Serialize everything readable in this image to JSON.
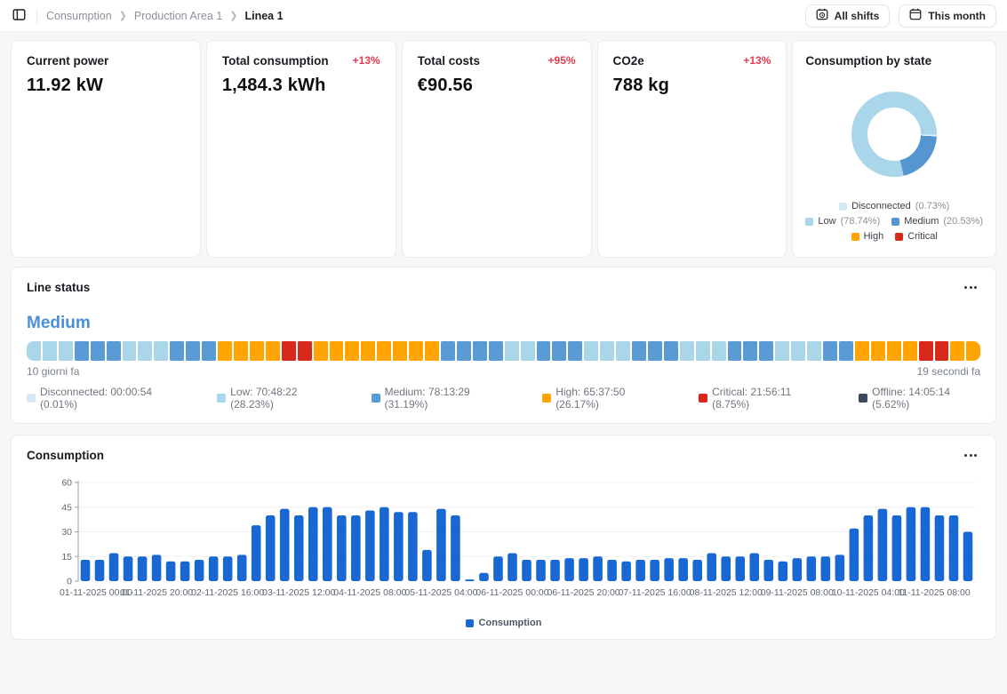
{
  "header": {
    "breadcrumb": [
      "Consumption",
      "Production Area 1",
      "Linea 1"
    ],
    "buttons": {
      "all_shifts": "All shifts",
      "this_month": "This month"
    }
  },
  "kpis": [
    {
      "title": "Current power",
      "value": "11.92 kW",
      "delta": ""
    },
    {
      "title": "Total consumption",
      "value": "1,484.3 kWh",
      "delta": "+13%"
    },
    {
      "title": "Total costs",
      "value": "€90.56",
      "delta": "+95%"
    },
    {
      "title": "CO2e",
      "value": "788 kg",
      "delta": "+13%"
    }
  ],
  "consumption_by_state": {
    "title": "Consumption by state",
    "donut": {
      "start_deg": 167,
      "slices": [
        {
          "label": "Low",
          "value": 78.74,
          "color": "#a9d6e9"
        },
        {
          "label": "Disconnected",
          "value": 0.73,
          "color": "#e6f2fa"
        },
        {
          "label": "Medium",
          "value": 20.53,
          "color": "#5596d0"
        },
        {
          "label": "High",
          "value": 0,
          "color": "#ffa400"
        },
        {
          "label": "Critical",
          "value": 0,
          "color": "#d9291c"
        }
      ]
    },
    "legend_rows": [
      [
        {
          "label": "Disconnected",
          "pct": "(0.73%)",
          "color": "#d5e9f5"
        }
      ],
      [
        {
          "label": "Low",
          "pct": "(78.74%)",
          "color": "#a9d6e9"
        },
        {
          "label": "Medium",
          "pct": "(20.53%)",
          "color": "#5596d0"
        }
      ],
      [
        {
          "label": "High",
          "pct": "",
          "color": "#ffa400"
        },
        {
          "label": "Critical",
          "pct": "",
          "color": "#d9291c"
        }
      ]
    ]
  },
  "line_status": {
    "title": "Line status",
    "current": "Medium",
    "range_start": "10 giorni fa",
    "range_end": "19 secondi fa",
    "segments": "LLLMMMLLLMMMOOOORROOOOOOOOMMMMLLMMMLLLMMMLLLMMMLLLMMOOOORROO",
    "state_colors": {
      "L": "#a9d6e9",
      "M": "#5b9bd5",
      "O": "#ffa400",
      "R": "#d9291c",
      "D": "#d5e9f5",
      "X": "#3d4a5c"
    },
    "legend": [
      {
        "label": "Disconnected",
        "time": "00:00:54",
        "pct": "0.01%",
        "color": "#d5e9f5"
      },
      {
        "label": "Low",
        "time": "70:48:22",
        "pct": "28.23%",
        "color": "#a9d6e9"
      },
      {
        "label": "Medium",
        "time": "78:13:29",
        "pct": "31.19%",
        "color": "#5b9bd5"
      },
      {
        "label": "High",
        "time": "65:37:50",
        "pct": "26.17%",
        "color": "#ffa400"
      },
      {
        "label": "Critical",
        "time": "21:56:11",
        "pct": "8.75%",
        "color": "#d9291c"
      },
      {
        "label": "Offline",
        "time": "14:05:14",
        "pct": "5.62%",
        "color": "#3d4a5c"
      }
    ]
  },
  "consumption_panel": {
    "title": "Consumption"
  },
  "chart_data": {
    "type": "bar",
    "title": "Consumption",
    "series_name": "Consumption",
    "color": "#1867d2",
    "ylabel": "",
    "xlabel": "",
    "ylim": [
      0,
      60
    ],
    "yticks": [
      0,
      15,
      30,
      45,
      60
    ],
    "grid": true,
    "legend_position": "bottom",
    "values": [
      13,
      13,
      17,
      15,
      15,
      16,
      12,
      12,
      13,
      15,
      15,
      16,
      34,
      40,
      44,
      40,
      45,
      45,
      40,
      40,
      43,
      45,
      42,
      42,
      19,
      44,
      40,
      1,
      5,
      15,
      17,
      13,
      13,
      13,
      14,
      14,
      15,
      13,
      12,
      13,
      13,
      14,
      14,
      13,
      17,
      15,
      15,
      17,
      13,
      12,
      14,
      15,
      15,
      16,
      32,
      40,
      44,
      40,
      45,
      45,
      40,
      40,
      30
    ],
    "x_ticks": [
      {
        "index": 0,
        "label": "01-11-2025 00:00"
      },
      {
        "index": 5,
        "label": "01-11-2025 20:00"
      },
      {
        "index": 10,
        "label": "02-11-2025 16:00"
      },
      {
        "index": 15,
        "label": "03-11-2025 12:00"
      },
      {
        "index": 20,
        "label": "04-11-2025 08:00"
      },
      {
        "index": 25,
        "label": "05-11-2025 04:00"
      },
      {
        "index": 30,
        "label": "06-11-2025 00:00"
      },
      {
        "index": 35,
        "label": "06-11-2025 20:00"
      },
      {
        "index": 40,
        "label": "07-11-2025 16:00"
      },
      {
        "index": 45,
        "label": "08-11-2025 12:00"
      },
      {
        "index": 50,
        "label": "09-11-2025 08:00"
      },
      {
        "index": 55,
        "label": "10-11-2025 04:00"
      },
      {
        "index": 62,
        "label": "11-11-2025 08:00"
      }
    ]
  }
}
